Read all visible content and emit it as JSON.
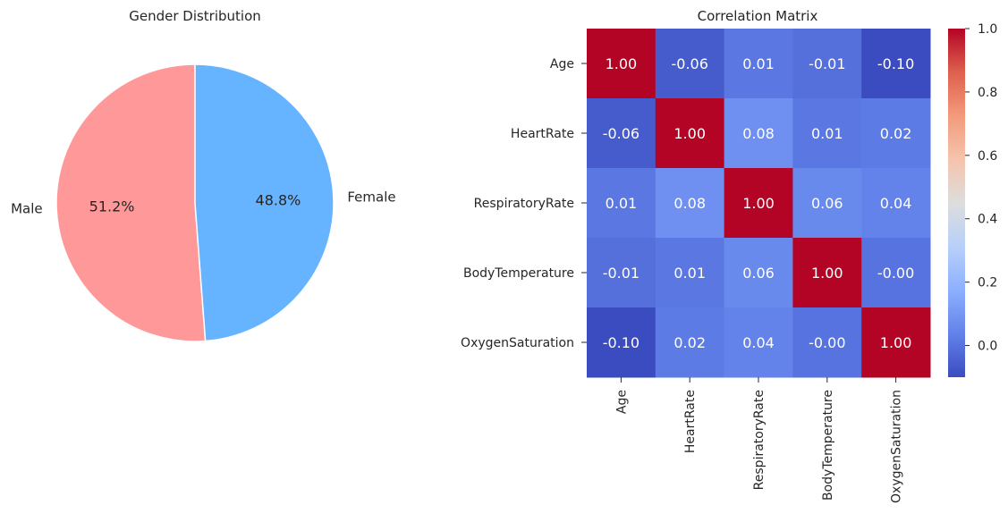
{
  "chart_data": [
    {
      "type": "pie",
      "title": "Gender Distribution",
      "labels": [
        "Male",
        "Female"
      ],
      "values": [
        51.2,
        48.8
      ],
      "percent_labels": [
        "51.2%",
        "48.8%"
      ],
      "colors": [
        "#ff9999",
        "#66b3ff"
      ],
      "legend": "none"
    },
    {
      "type": "heatmap",
      "title": "Correlation Matrix",
      "row_labels": [
        "Age",
        "HeartRate",
        "RespiratoryRate",
        "BodyTemperature",
        "OxygenSaturation"
      ],
      "col_labels": [
        "Age",
        "HeartRate",
        "RespiratoryRate",
        "BodyTemperature",
        "OxygenSaturation"
      ],
      "values": [
        [
          1.0,
          -0.06,
          0.01,
          -0.01,
          -0.1
        ],
        [
          -0.06,
          1.0,
          0.08,
          0.01,
          0.02
        ],
        [
          0.01,
          0.08,
          1.0,
          0.06,
          0.04
        ],
        [
          -0.01,
          0.01,
          0.06,
          1.0,
          -0.0
        ],
        [
          -0.1,
          0.02,
          0.04,
          -0.0,
          1.0
        ]
      ],
      "annotations": [
        [
          "1.00",
          "-0.06",
          "0.01",
          "-0.01",
          "-0.10"
        ],
        [
          "-0.06",
          "1.00",
          "0.08",
          "0.01",
          "0.02"
        ],
        [
          "0.01",
          "0.08",
          "1.00",
          "0.06",
          "0.04"
        ],
        [
          "-0.01",
          "0.01",
          "0.06",
          "1.00",
          "-0.00"
        ],
        [
          "-0.10",
          "0.02",
          "0.04",
          "-0.00",
          "1.00"
        ]
      ],
      "colormap": "coolwarm",
      "vmin": -0.1,
      "vmax": 1.0,
      "colorbar_ticks": [
        0.0,
        0.2,
        0.4,
        0.6,
        0.8,
        1.0
      ],
      "colorbar_tick_labels": [
        "0.0",
        "0.2",
        "0.4",
        "0.6",
        "0.8",
        "1.0"
      ]
    }
  ]
}
